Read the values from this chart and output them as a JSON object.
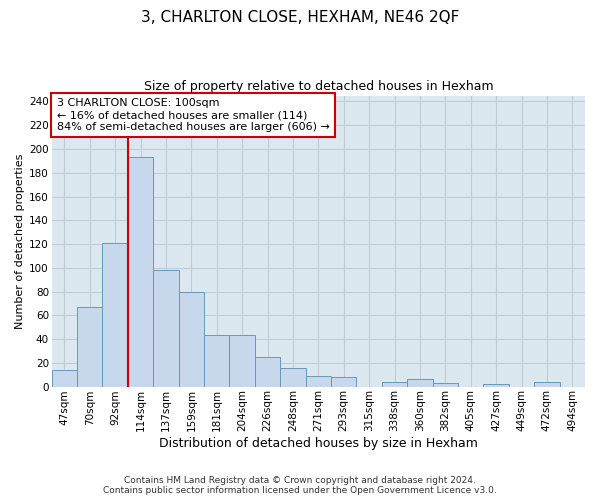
{
  "title": "3, CHARLTON CLOSE, HEXHAM, NE46 2QF",
  "subtitle": "Size of property relative to detached houses in Hexham",
  "xlabel": "Distribution of detached houses by size in Hexham",
  "ylabel": "Number of detached properties",
  "bin_labels": [
    "47sqm",
    "70sqm",
    "92sqm",
    "114sqm",
    "137sqm",
    "159sqm",
    "181sqm",
    "204sqm",
    "226sqm",
    "248sqm",
    "271sqm",
    "293sqm",
    "315sqm",
    "338sqm",
    "360sqm",
    "382sqm",
    "405sqm",
    "427sqm",
    "449sqm",
    "472sqm",
    "494sqm"
  ],
  "bar_values": [
    14,
    67,
    121,
    193,
    98,
    80,
    43,
    43,
    25,
    16,
    9,
    8,
    0,
    4,
    6,
    3,
    0,
    2,
    0,
    4,
    0
  ],
  "bar_color": "#c8d8ec",
  "bar_edge_color": "#6699bb",
  "vline_x": 2.5,
  "vline_color": "#cc0000",
  "annotation_line1": "3 CHARLTON CLOSE: 100sqm",
  "annotation_line2": "← 16% of detached houses are smaller (114)",
  "annotation_line3": "84% of semi-detached houses are larger (606) →",
  "annotation_box_color": "#ffffff",
  "annotation_box_edge": "#cc0000",
  "ylim": [
    0,
    245
  ],
  "yticks": [
    0,
    20,
    40,
    60,
    80,
    100,
    120,
    140,
    160,
    180,
    200,
    220,
    240
  ],
  "footer_line1": "Contains HM Land Registry data © Crown copyright and database right 2024.",
  "footer_line2": "Contains public sector information licensed under the Open Government Licence v3.0.",
  "fig_background": "#ffffff",
  "plot_background": "#dce8f0",
  "grid_color": "#c0cdd8",
  "title_fontsize": 11,
  "subtitle_fontsize": 9,
  "tick_fontsize": 7.5,
  "ylabel_fontsize": 8,
  "xlabel_fontsize": 9,
  "footer_fontsize": 6.5
}
